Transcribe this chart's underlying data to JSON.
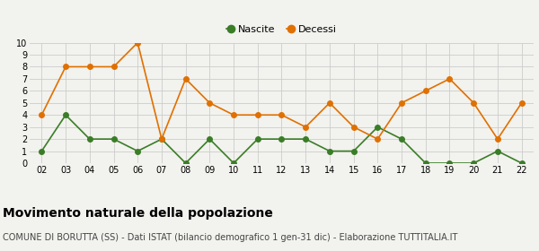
{
  "years": [
    "02",
    "03",
    "04",
    "05",
    "06",
    "07",
    "08",
    "09",
    "10",
    "11",
    "12",
    "13",
    "14",
    "15",
    "16",
    "17",
    "18",
    "19",
    "20",
    "21",
    "22"
  ],
  "nascite": [
    1,
    4,
    2,
    2,
    1,
    2,
    0,
    2,
    0,
    2,
    2,
    2,
    1,
    1,
    3,
    2,
    0,
    0,
    0,
    1,
    0
  ],
  "decessi": [
    4,
    8,
    8,
    8,
    10,
    2,
    7,
    5,
    4,
    4,
    4,
    3,
    5,
    3,
    2,
    5,
    6,
    7,
    5,
    2,
    5
  ],
  "nascite_color": "#3a7d27",
  "decessi_color": "#e07000",
  "background_color": "#f2f2ee",
  "grid_color": "#cccccc",
  "ylim": [
    0,
    10
  ],
  "yticks": [
    0,
    1,
    2,
    3,
    4,
    5,
    6,
    7,
    8,
    9,
    10
  ],
  "title": "Movimento naturale della popolazione",
  "subtitle": "COMUNE DI BORUTTA (SS) - Dati ISTAT (bilancio demografico 1 gen-31 dic) - Elaborazione TUTTITALIA.IT",
  "legend_nascite": "Nascite",
  "legend_decessi": "Decessi",
  "title_fontsize": 10,
  "subtitle_fontsize": 7,
  "tick_fontsize": 7,
  "legend_fontsize": 8,
  "marker_size": 4,
  "line_width": 1.2
}
